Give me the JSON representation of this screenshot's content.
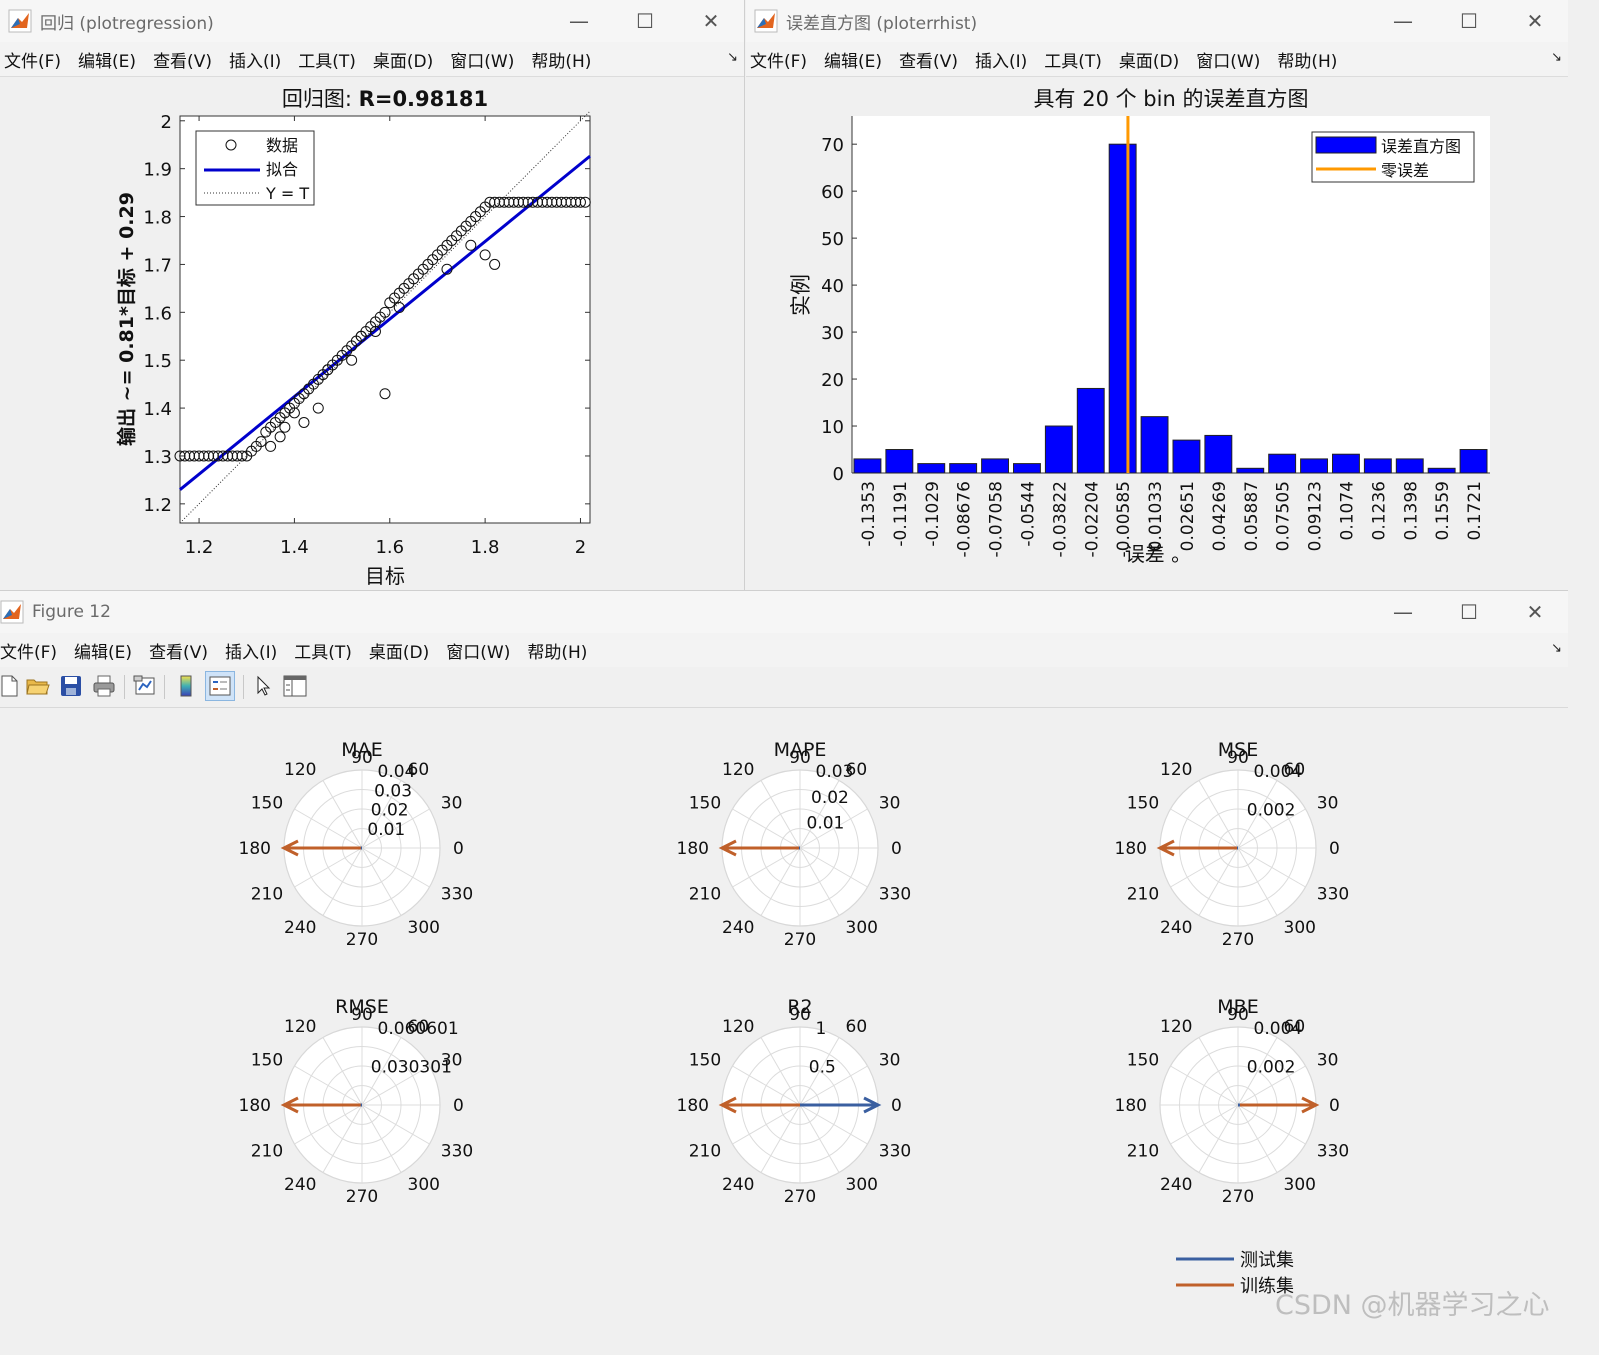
{
  "menus": [
    "文件(F)",
    "编辑(E)",
    "查看(V)",
    "插入(I)",
    "工具(T)",
    "桌面(D)",
    "窗口(W)",
    "帮助(H)"
  ],
  "win1": {
    "title": "回归 (plotregression)",
    "plot_title_prefix": "回归图: ",
    "plot_title_value": "R=0.98181",
    "xlabel": "目标",
    "ylabel": "输出 ~= 0.81*目标 + 0.29",
    "legend": [
      "数据",
      "拟合",
      "Y = T"
    ],
    "xticks": [
      "1.2",
      "1.4",
      "1.6",
      "1.8",
      "2"
    ],
    "yticks": [
      "1.2",
      "1.3",
      "1.4",
      "1.5",
      "1.6",
      "1.7",
      "1.8",
      "1.9",
      "2"
    ]
  },
  "win2": {
    "title": "误差直方图 (ploterrhist)",
    "plot_title": "具有 20 个 bin 的误差直方图",
    "xlabel": "误差 。",
    "ylabel": "实例",
    "legend": [
      "误差直方图",
      "零误差"
    ],
    "yticks": [
      "0",
      "10",
      "20",
      "30",
      "40",
      "50",
      "60",
      "70"
    ]
  },
  "win3": {
    "title": "Figure 12",
    "toolbar_icons": [
      "new-file-icon",
      "open-folder-icon",
      "save-icon",
      "print-icon",
      "link-plot-icon",
      "insert-colorbar-icon",
      "insert-legend-icon",
      "pointer-icon",
      "property-inspector-icon"
    ],
    "legend": [
      "测试集",
      "训练集"
    ],
    "watermark": "CSDN @机器学习之心"
  },
  "chart_data": [
    {
      "type": "scatter",
      "title": "回归图: R=0.98181",
      "xlabel": "目标",
      "ylabel": "输出 ~= 0.81*目标 + 0.29",
      "xlim": [
        1.16,
        2.02
      ],
      "ylim": [
        1.16,
        2.01
      ],
      "series": [
        {
          "name": "数据",
          "style": "circles",
          "x": [
            1.16,
            1.17,
            1.18,
            1.19,
            1.2,
            1.21,
            1.22,
            1.23,
            1.24,
            1.25,
            1.26,
            1.27,
            1.28,
            1.29,
            1.3,
            1.31,
            1.32,
            1.33,
            1.34,
            1.35,
            1.36,
            1.37,
            1.38,
            1.39,
            1.4,
            1.41,
            1.42,
            1.43,
            1.44,
            1.45,
            1.46,
            1.47,
            1.48,
            1.49,
            1.5,
            1.51,
            1.52,
            1.53,
            1.54,
            1.55,
            1.56,
            1.57,
            1.58,
            1.59,
            1.6,
            1.61,
            1.62,
            1.63,
            1.64,
            1.65,
            1.66,
            1.67,
            1.68,
            1.69,
            1.7,
            1.71,
            1.72,
            1.73,
            1.74,
            1.75,
            1.76,
            1.77,
            1.78,
            1.79,
            1.8,
            1.81,
            1.82,
            1.83,
            1.84,
            1.85,
            1.86,
            1.87,
            1.88,
            1.89,
            1.9,
            1.91,
            1.92,
            1.93,
            1.94,
            1.95,
            1.96,
            1.97,
            1.98,
            1.99,
            2.0,
            2.01,
            1.35,
            1.38,
            1.4,
            1.45,
            1.54,
            1.59,
            1.82,
            1.8,
            1.37,
            1.42,
            1.47,
            1.52,
            1.57,
            1.62,
            1.72,
            1.77
          ],
          "y": [
            1.3,
            1.3,
            1.3,
            1.3,
            1.3,
            1.3,
            1.3,
            1.3,
            1.3,
            1.3,
            1.3,
            1.3,
            1.3,
            1.3,
            1.3,
            1.31,
            1.32,
            1.33,
            1.35,
            1.36,
            1.37,
            1.38,
            1.39,
            1.4,
            1.41,
            1.42,
            1.43,
            1.44,
            1.45,
            1.46,
            1.47,
            1.48,
            1.49,
            1.5,
            1.51,
            1.52,
            1.53,
            1.54,
            1.55,
            1.56,
            1.57,
            1.58,
            1.59,
            1.6,
            1.62,
            1.63,
            1.64,
            1.65,
            1.66,
            1.67,
            1.68,
            1.69,
            1.7,
            1.71,
            1.72,
            1.73,
            1.74,
            1.75,
            1.76,
            1.77,
            1.78,
            1.79,
            1.8,
            1.81,
            1.82,
            1.83,
            1.83,
            1.83,
            1.83,
            1.83,
            1.83,
            1.83,
            1.83,
            1.83,
            1.83,
            1.83,
            1.83,
            1.83,
            1.83,
            1.83,
            1.83,
            1.83,
            1.83,
            1.83,
            1.83,
            1.83,
            1.32,
            1.36,
            1.39,
            1.4,
            1.55,
            1.43,
            1.7,
            1.72,
            1.34,
            1.37,
            1.48,
            1.5,
            1.56,
            1.61,
            1.69,
            1.74
          ]
        },
        {
          "name": "拟合",
          "style": "line",
          "x": [
            1.16,
            2.02
          ],
          "y": [
            1.2296,
            1.9262
          ]
        },
        {
          "name": "Y = T",
          "style": "dotted",
          "x": [
            1.16,
            2.02
          ],
          "y": [
            1.16,
            2.02
          ]
        }
      ],
      "legend_position": "top-left"
    },
    {
      "type": "bar",
      "title": "具有 20 个 bin 的误差直方图",
      "xlabel": "误差 。",
      "ylabel": "实例",
      "categories": [
        "-0.1353",
        "-0.1191",
        "-0.1029",
        "-0.08676",
        "-0.07058",
        "-0.0544",
        "-0.03822",
        "-0.02204",
        "-0.00585",
        "0.01033",
        "0.02651",
        "0.04269",
        "0.05887",
        "0.07505",
        "0.09123",
        "0.1074",
        "0.1236",
        "0.1398",
        "0.1559",
        "0.1721"
      ],
      "values": [
        3,
        5,
        2,
        2,
        3,
        2,
        10,
        18,
        70,
        12,
        7,
        8,
        1,
        4,
        3,
        4,
        3,
        3,
        1,
        5
      ],
      "ylim": [
        0,
        76
      ],
      "zero_error_line_category": 8.65,
      "colors": {
        "bars": "#0000ff",
        "zero_line": "#ff9900"
      },
      "legend_position": "top-right"
    },
    [
      {
        "type": "polar",
        "title": "MAE",
        "rticks": [
          "0.01",
          "0.02",
          "0.03",
          "0.04"
        ],
        "rmax": 0.04,
        "test": {
          "angle": 180,
          "r": 0.0006
        },
        "train": {
          "angle": 180,
          "r": 0.04
        }
      },
      {
        "type": "polar",
        "title": "MAPE",
        "rticks": [
          "0.01",
          "0.02",
          "0.03"
        ],
        "rmax": 0.03,
        "test": {
          "angle": 180,
          "r": 0.0004
        },
        "train": {
          "angle": 180,
          "r": 0.03
        }
      },
      {
        "type": "polar",
        "title": "MSE",
        "rticks": [
          "0.002",
          "0.004"
        ],
        "rmax": 0.004,
        "test": {
          "angle": 180,
          "r": 5e-05
        },
        "train": {
          "angle": 180,
          "r": 0.004
        }
      },
      {
        "type": "polar",
        "title": "RMSE",
        "rticks": [
          "0.030301",
          "0.060601"
        ],
        "rmax": 0.060601,
        "test": {
          "angle": 180,
          "r": 0.001
        },
        "train": {
          "angle": 180,
          "r": 0.060601
        }
      },
      {
        "type": "polar",
        "title": "R2",
        "rticks": [
          "0.5",
          "1"
        ],
        "rmax": 1,
        "test": {
          "angle": 0,
          "r": 1
        },
        "train": {
          "angle": 180,
          "r": 1
        }
      },
      {
        "type": "polar",
        "title": "MBE",
        "rticks": [
          "0.002",
          "0.004"
        ],
        "rmax": 0.004,
        "test": {
          "angle": 0,
          "r": 0.0001
        },
        "train": {
          "angle": 0,
          "r": 0.004
        }
      }
    ]
  ],
  "colors": {
    "test": "#3a5fa0",
    "train": "#c0602a",
    "fit": "#0000cc"
  }
}
